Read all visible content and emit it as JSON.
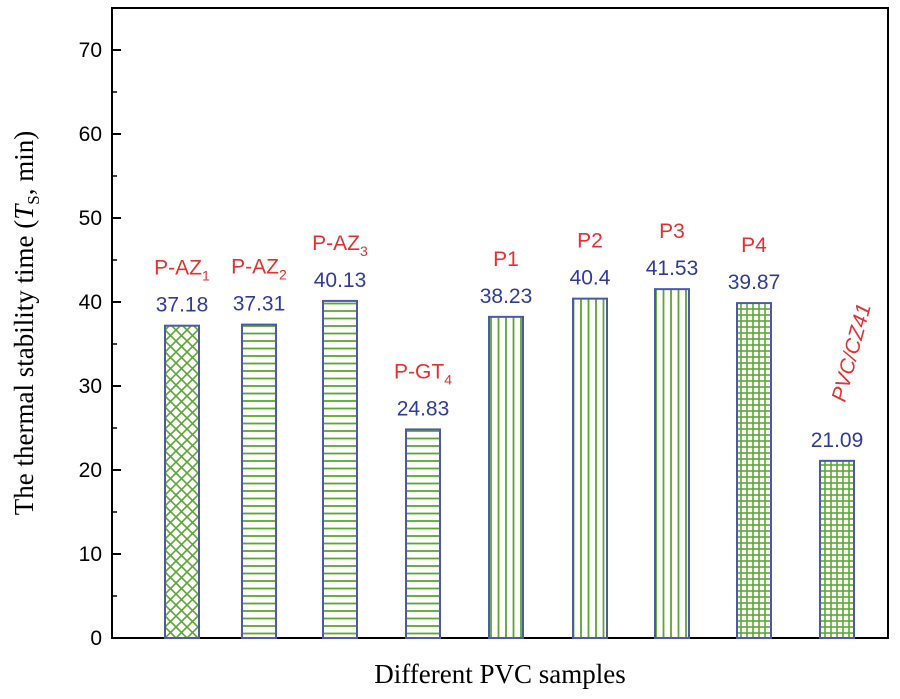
{
  "chart_data": {
    "type": "bar",
    "xlabel": "Different PVC samples",
    "ylabel": {
      "prefix": "The thermal stability time (",
      "symbol": "T",
      "subscript": "S",
      "suffix": ", min)"
    },
    "ylim": [
      0,
      75
    ],
    "yticks": [
      "0",
      "10",
      "20",
      "30",
      "40",
      "50",
      "60",
      "70"
    ],
    "categories": [
      {
        "main": "P-AZ",
        "sub": "1"
      },
      {
        "main": "P-AZ",
        "sub": "2"
      },
      {
        "main": "P-AZ",
        "sub": "3"
      },
      {
        "main": "P-GT",
        "sub": "4"
      },
      {
        "main": "P1",
        "sub": ""
      },
      {
        "main": "P2",
        "sub": ""
      },
      {
        "main": "P3",
        "sub": ""
      },
      {
        "main": "P4",
        "sub": ""
      },
      {
        "main": "PVC/CZ41",
        "sub": ""
      }
    ],
    "values": [
      37.18,
      37.31,
      40.13,
      24.83,
      38.23,
      40.4,
      41.53,
      39.87,
      21.09
    ],
    "value_labels": [
      "37.18",
      "37.31",
      "40.13",
      "24.83",
      "38.23",
      "40.4",
      "41.53",
      "39.87",
      "21.09"
    ],
    "patterns": [
      "crosshatch",
      "hlines",
      "hlines",
      "hlines",
      "vlines",
      "vlines",
      "vlines",
      "grid",
      "grid"
    ],
    "grid": false,
    "legend": "none",
    "colors": {
      "bar_border": "#4a5aa8",
      "bar_pattern": "#5aa832",
      "value_label": "#2e3b9c",
      "category_label": "#e53030",
      "axis": "#000000"
    }
  }
}
